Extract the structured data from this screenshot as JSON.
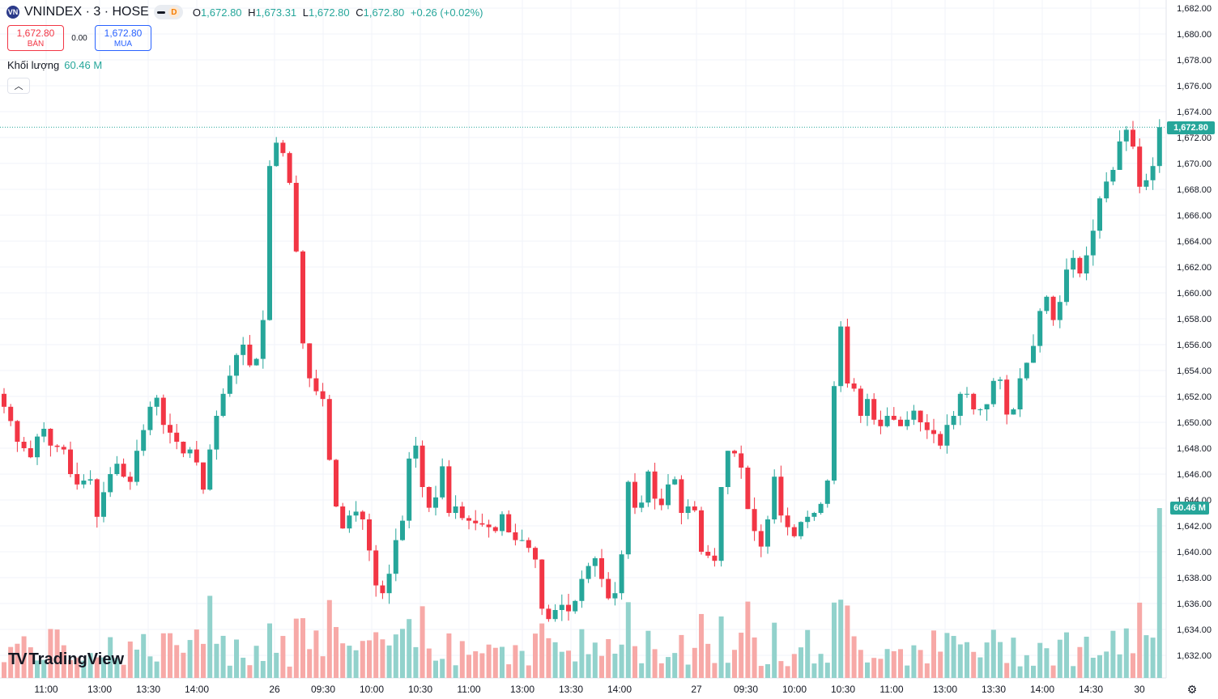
{
  "legend": {
    "symbol_icon": "vn-logo-icon",
    "symbol_title": "VNINDEX · 3 · HOSE",
    "interval_badge": "D",
    "ohlc": {
      "o_label": "O",
      "o": "1,672.80",
      "h_label": "H",
      "h": "1,673.31",
      "l_label": "L",
      "l": "1,672.80",
      "c_label": "C",
      "c": "1,672.80",
      "change": "+0.26 (+0.02%)"
    }
  },
  "trade": {
    "sell_price": "1,672.80",
    "sell_label": "BÁN",
    "spread": "0.00",
    "buy_price": "1,672.80",
    "buy_label": "MUA"
  },
  "volume_legend": {
    "label": "Khối lượng",
    "value": "60.46 M"
  },
  "collapse_icon": "chevron-up-icon",
  "last_price_badge": "1,672.80",
  "volume_badge": "60.46 M",
  "logo_text": "TradingView",
  "colors": {
    "up": "#26a69a",
    "down": "#f23645",
    "up_vol": "#92d2cc",
    "down_vol": "#f7a9a7",
    "grid": "#f0f3fa"
  },
  "price_axis": [
    "1,682.00",
    "1,680.00",
    "1,678.00",
    "1,676.00",
    "1,674.00",
    "1,672.00",
    "1,670.00",
    "1,668.00",
    "1,666.00",
    "1,664.00",
    "1,662.00",
    "1,660.00",
    "1,658.00",
    "1,656.00",
    "1,654.00",
    "1,652.00",
    "1,650.00",
    "1,648.00",
    "1,646.00",
    "1,644.00",
    "1,642.00",
    "1,640.00",
    "1,638.00",
    "1,636.00",
    "1,634.00",
    "1,632.00"
  ],
  "time_axis": [
    "11:00",
    "13:00",
    "13:30",
    "14:00",
    "26",
    "09:30",
    "10:00",
    "10:30",
    "11:00",
    "13:00",
    "13:30",
    "14:00",
    "27",
    "09:30",
    "10:00",
    "10:30",
    "11:00",
    "13:00",
    "13:30",
    "14:00",
    "14:30",
    "30"
  ],
  "chart_data": {
    "type": "candlestick",
    "y_range": [
      1631,
      1683
    ],
    "last_price": 1672.8,
    "closes": [
      1651.2,
      1650.1,
      1648.5,
      1648.0,
      1647.3,
      1648.9,
      1649.5,
      1648.2,
      1648.1,
      1647.9,
      1646.0,
      1645.2,
      1645.5,
      1645.6,
      1642.7,
      1644.6,
      1646.0,
      1646.8,
      1645.8,
      1645.4,
      1647.8,
      1649.4,
      1651.2,
      1651.9,
      1649.8,
      1649.2,
      1648.5,
      1647.6,
      1647.9,
      1646.9,
      1644.8,
      1647.9,
      1650.5,
      1652.2,
      1653.6,
      1655.2,
      1656.0,
      1654.4,
      1654.9,
      1657.9,
      1669.8,
      1671.6,
      1670.8,
      1668.5,
      1663.2,
      1656.1,
      1653.4,
      1652.4,
      1651.8,
      1647.1,
      1643.5,
      1641.8,
      1642.8,
      1643.1,
      1642.5,
      1640.1,
      1637.4,
      1636.8,
      1638.3,
      1640.9,
      1642.4,
      1647.2,
      1648.2,
      1645.0,
      1643.4,
      1644.2,
      1646.6,
      1643.0,
      1643.5,
      1642.6,
      1642.4,
      1642.2,
      1642.1,
      1641.9,
      1641.6,
      1642.9,
      1641.5,
      1640.9,
      1640.9,
      1640.3,
      1639.4,
      1635.6,
      1634.8,
      1635.5,
      1635.9,
      1635.4,
      1636.2,
      1637.9,
      1638.9,
      1639.5,
      1637.9,
      1636.4,
      1636.8,
      1639.8,
      1645.4,
      1643.4,
      1643.8,
      1646.2,
      1644.1,
      1643.6,
      1645.2,
      1645.6,
      1643.0,
      1643.5,
      1643.2,
      1640.0,
      1639.7,
      1639.3,
      1645.0,
      1647.8,
      1647.6,
      1646.5,
      1643.3,
      1641.6,
      1640.4,
      1642.5,
      1645.8,
      1642.8,
      1641.9,
      1641.2,
      1642.3,
      1642.7,
      1643.0,
      1643.7,
      1645.5,
      1652.8,
      1657.4,
      1653.0,
      1652.6,
      1650.5,
      1651.8,
      1650.2,
      1649.7,
      1650.5,
      1650.2,
      1649.7,
      1650.2,
      1650.9,
      1650.0,
      1649.4,
      1649.1,
      1648.2,
      1649.8,
      1650.5,
      1652.2,
      1652.2,
      1651.0,
      1651.0,
      1651.4,
      1653.2,
      1653.3,
      1650.6,
      1651.0,
      1653.4,
      1654.6,
      1655.9,
      1658.6,
      1659.7,
      1657.9,
      1659.3,
      1661.8,
      1662.7,
      1661.5,
      1662.9,
      1664.8,
      1667.3,
      1668.6,
      1669.5,
      1671.7,
      1672.6,
      1671.3,
      1668.2,
      1668.7,
      1669.8,
      1672.8
    ],
    "volume_max": 60.46,
    "last_volume": 60.46
  }
}
